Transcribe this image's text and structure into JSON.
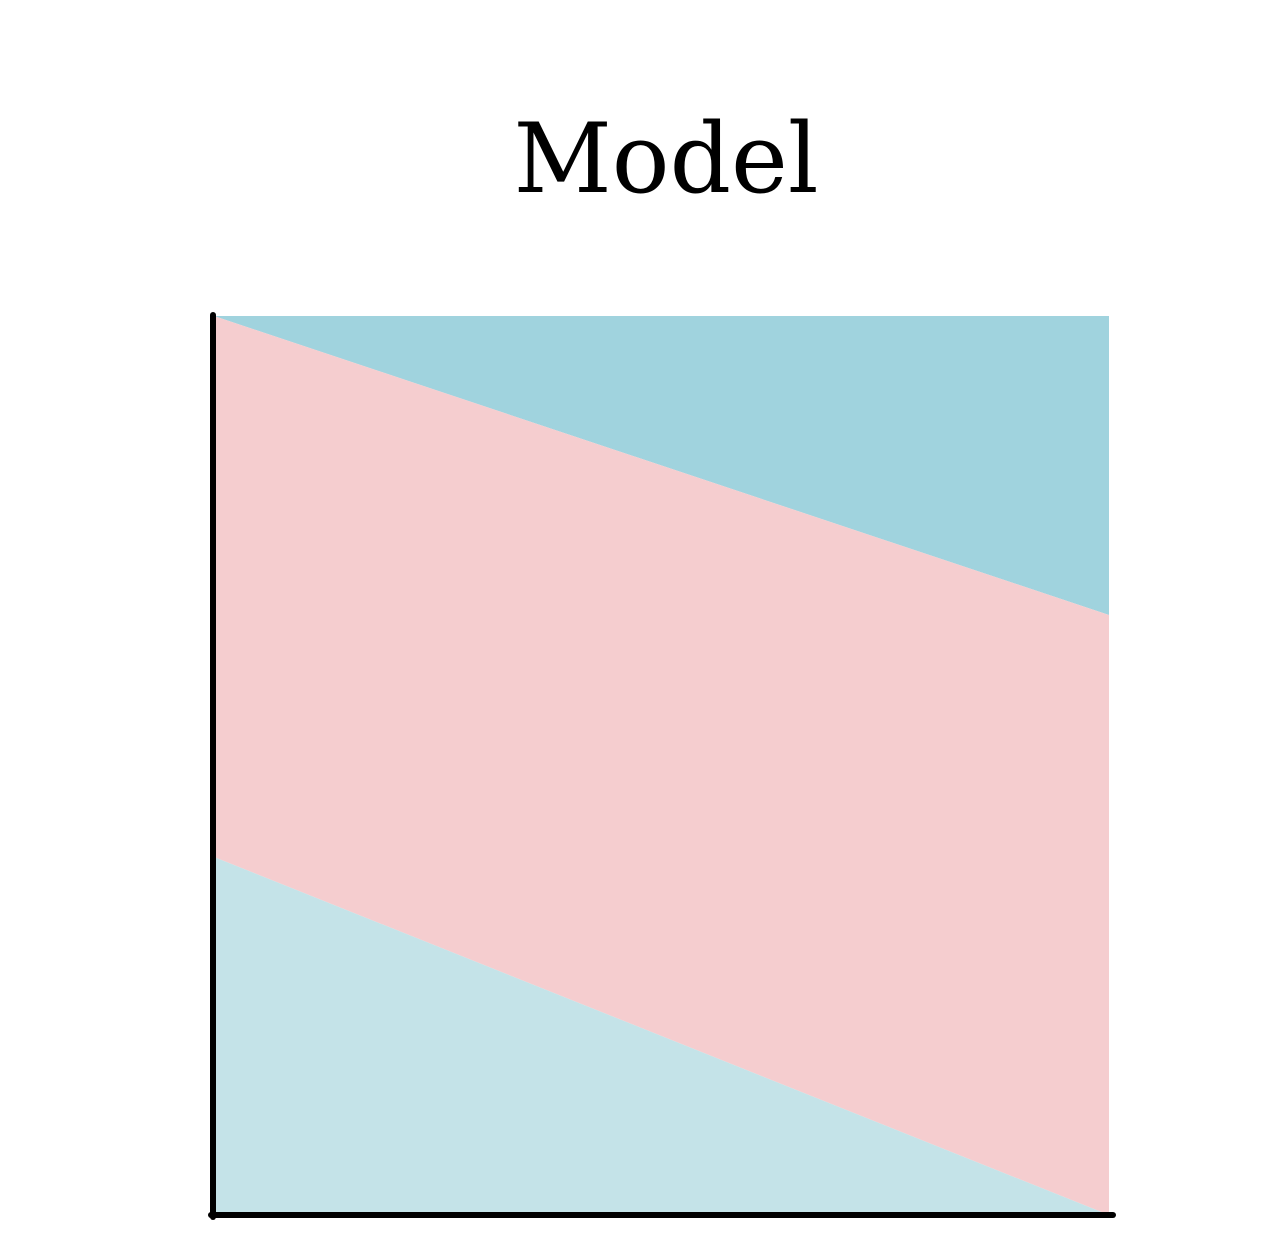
{
  "title": "Model",
  "colors": {
    "top_region": "#a0d3de",
    "middle_band": "#f5cdcf",
    "bottom_region": "#c4e3e8",
    "axis": "#000000"
  },
  "regions": [
    {
      "name": "top-region",
      "color_key": "top_region"
    },
    {
      "name": "middle-band",
      "color_key": "middle_band"
    },
    {
      "name": "bottom-region",
      "color_key": "bottom_region"
    }
  ]
}
